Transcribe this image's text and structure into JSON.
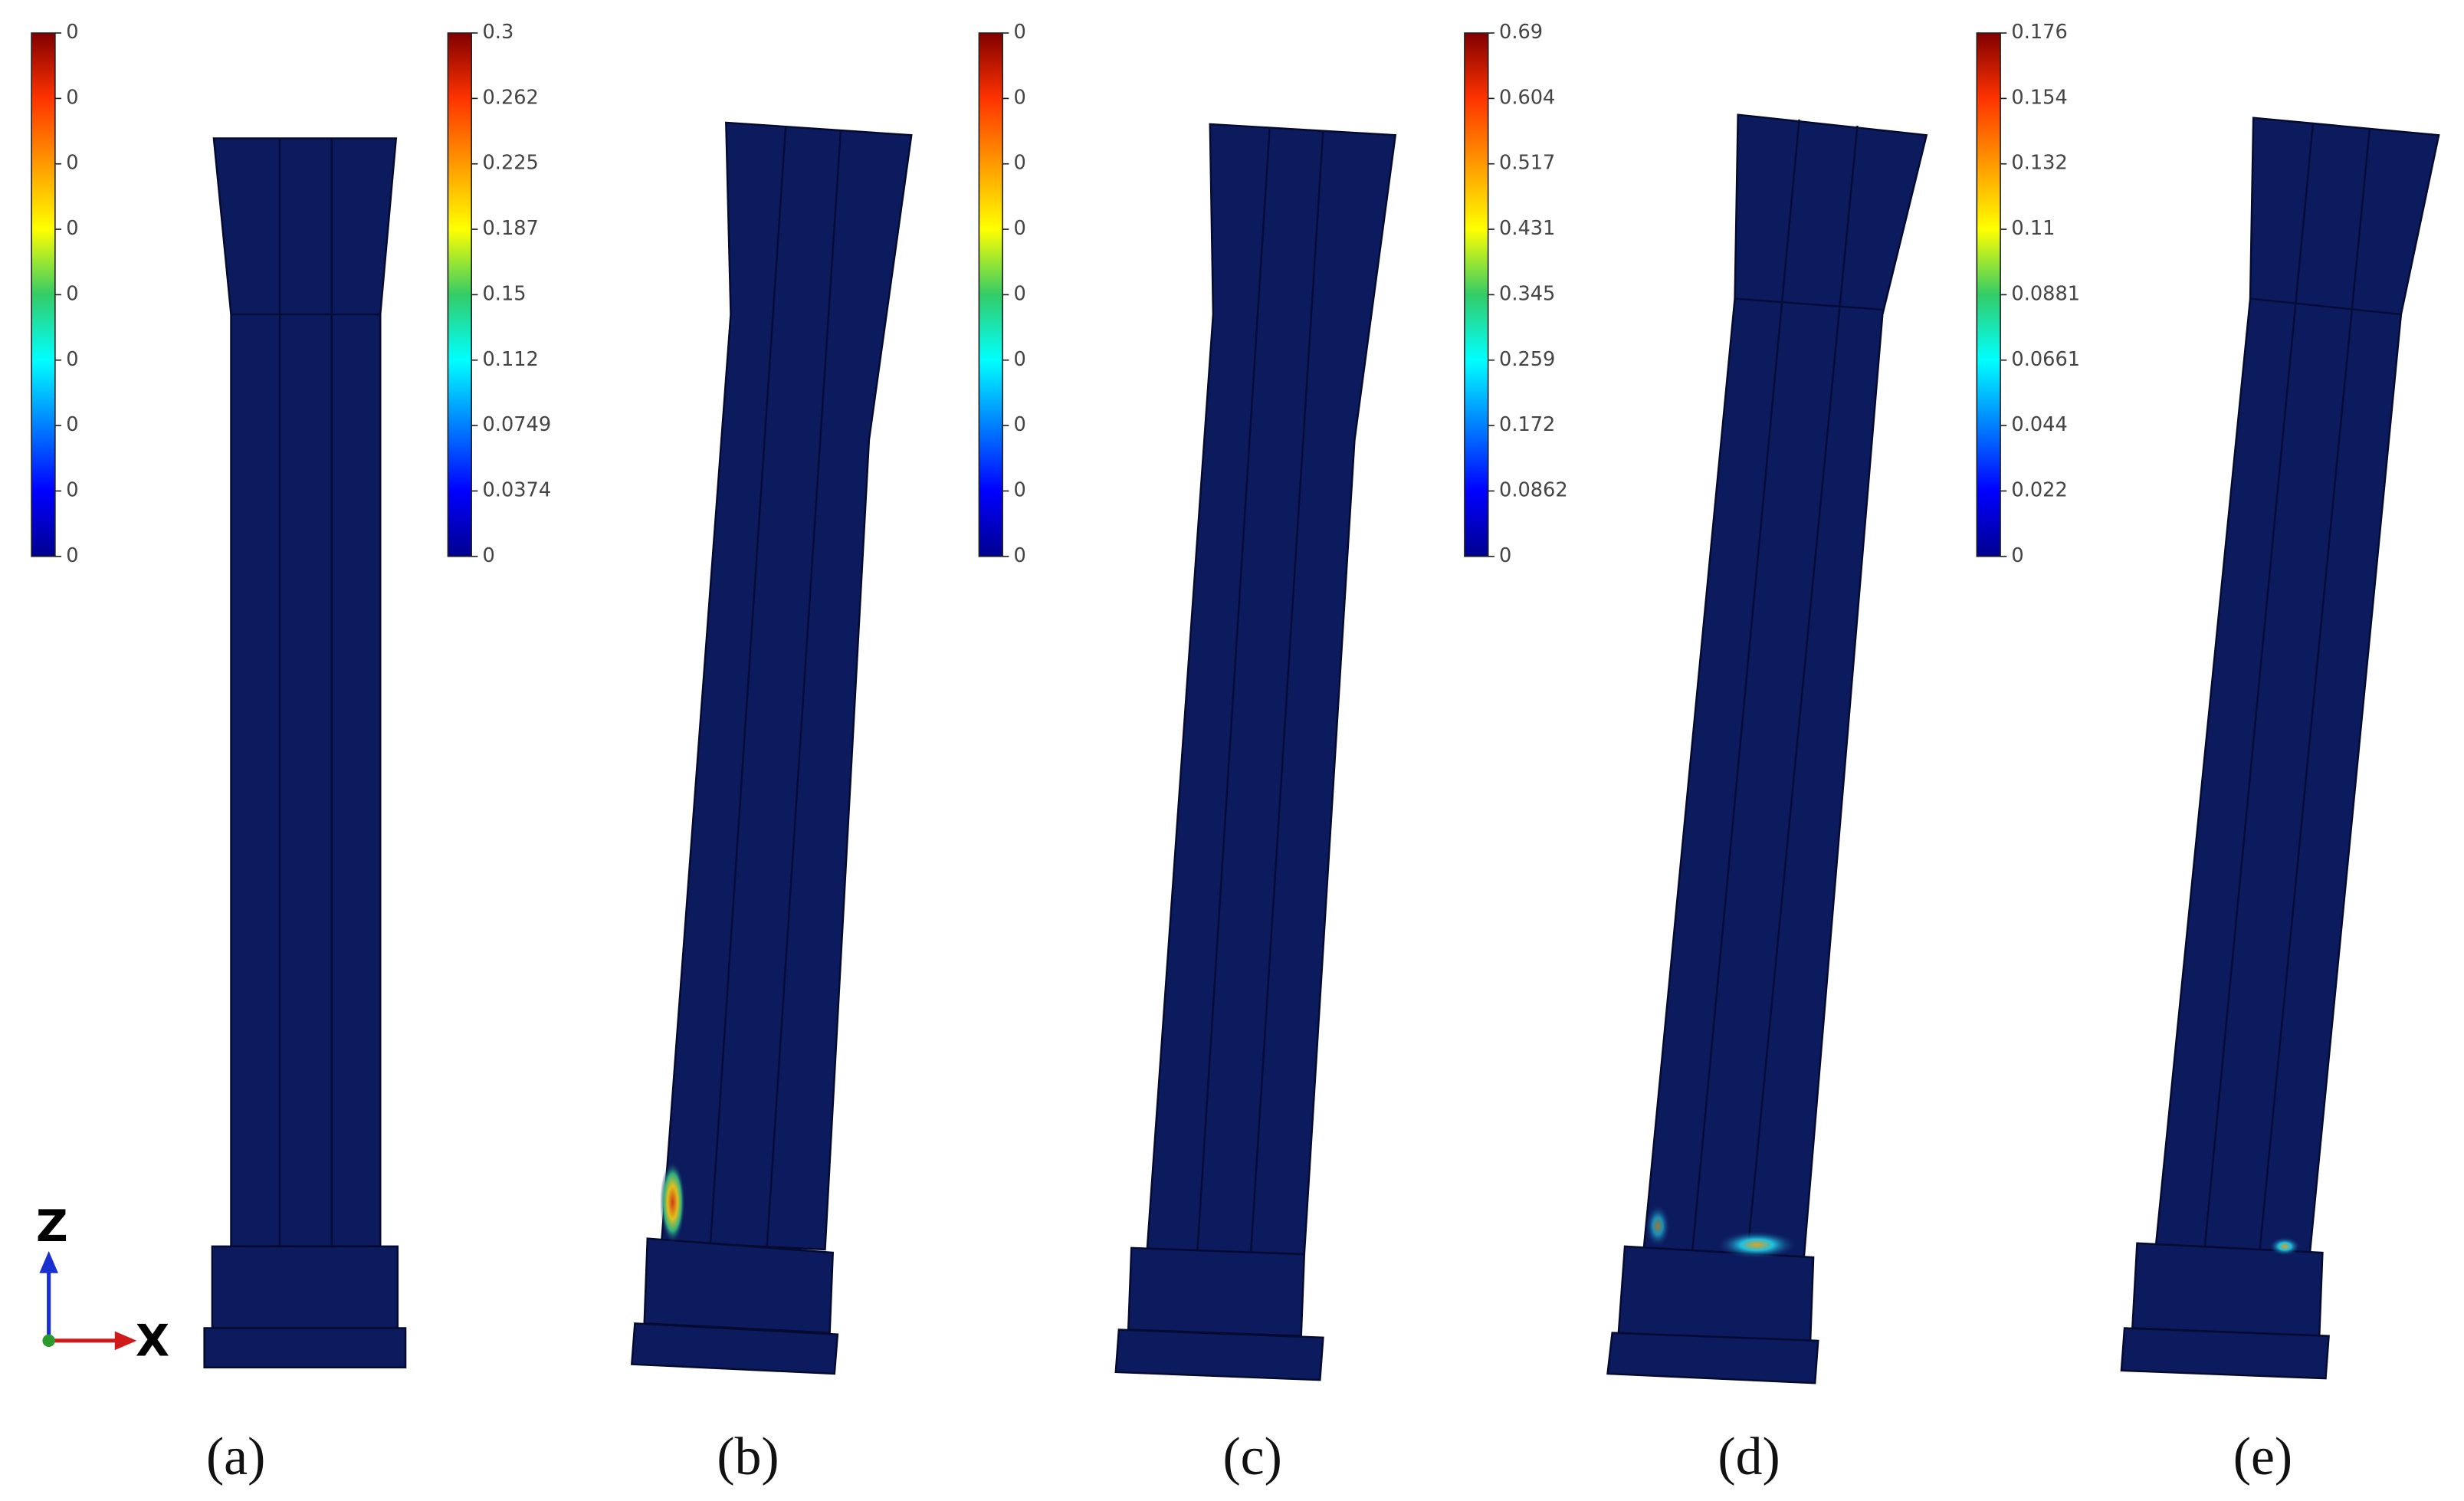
{
  "panels": [
    {
      "label": "(a)",
      "colorbar": [
        "0",
        "0",
        "0",
        "0",
        "0",
        "0",
        "0",
        "0",
        "0"
      ]
    },
    {
      "label": "(b)",
      "colorbar": [
        "0.3",
        "0.262",
        "0.225",
        "0.187",
        "0.15",
        "0.112",
        "0.0749",
        "0.0374",
        "0"
      ]
    },
    {
      "label": "(c)",
      "colorbar": [
        "0",
        "0",
        "0",
        "0",
        "0",
        "0",
        "0",
        "0",
        "0"
      ]
    },
    {
      "label": "(d)",
      "colorbar": [
        "0.69",
        "0.604",
        "0.517",
        "0.431",
        "0.345",
        "0.259",
        "0.172",
        "0.0862",
        "0"
      ]
    },
    {
      "label": "(e)",
      "colorbar": [
        "0.176",
        "0.154",
        "0.132",
        "0.11",
        "0.0881",
        "0.0661",
        "0.044",
        "0.022",
        "0"
      ]
    }
  ],
  "axes": {
    "z": "Z",
    "x": "X"
  }
}
